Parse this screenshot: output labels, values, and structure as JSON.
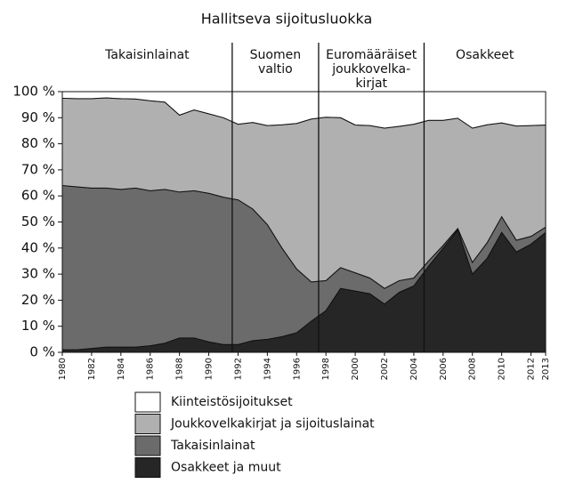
{
  "chart_data": {
    "type": "stacked-area",
    "title": "Hallitseva sijoitusluokka",
    "x": [
      1980,
      1981,
      1982,
      1983,
      1984,
      1985,
      1986,
      1987,
      1988,
      1989,
      1990,
      1991,
      1992,
      1993,
      1994,
      1995,
      1996,
      1997,
      1998,
      1999,
      2000,
      2001,
      2002,
      2003,
      2004,
      2005,
      2006,
      2007,
      2008,
      2009,
      2010,
      2011,
      2012,
      2013
    ],
    "series": [
      {
        "name": "Osakkeet ja muut",
        "color": "#262626",
        "values": [
          1,
          1,
          1.5,
          2,
          2,
          2,
          2.5,
          3.5,
          5.5,
          5.5,
          4,
          3,
          3,
          4.5,
          5,
          6,
          7.5,
          12,
          16,
          24.5,
          23.5,
          22.5,
          18.5,
          23,
          25.5,
          33,
          40,
          47,
          30,
          36,
          46,
          38.5,
          41.5,
          46
        ]
      },
      {
        "name": "Takaisinlainat",
        "color": "#6b6b6b",
        "values": [
          63,
          62.5,
          61.5,
          61,
          60.5,
          61,
          59.5,
          59,
          56,
          56.5,
          57,
          56.5,
          55.5,
          50.5,
          44,
          34,
          24.5,
          15,
          11.5,
          8,
          7,
          6,
          6,
          4.5,
          3,
          2,
          1,
          0.5,
          4.5,
          6,
          6,
          4.5,
          3,
          2
        ]
      },
      {
        "name": "Joukkovelkakirjat ja sijoituslainat",
        "color": "#b0b0b0",
        "values": [
          33.5,
          33.8,
          34.3,
          34.6,
          34.8,
          34.2,
          34.5,
          33.5,
          29.5,
          31,
          30.5,
          30.5,
          29,
          33.2,
          38,
          47.3,
          55.8,
          62.5,
          62.7,
          57.5,
          56.7,
          58.5,
          61.5,
          59.2,
          59,
          54,
          48,
          42.3,
          51.5,
          45.3,
          36,
          43.8,
          42.5,
          39.2
        ]
      },
      {
        "name": "Kiinteistösijoitukset",
        "color": "#ffffff",
        "values": [
          2.5,
          2.7,
          2.7,
          2.4,
          2.7,
          2.8,
          3.5,
          4,
          9,
          7,
          8.5,
          10,
          12.5,
          11.8,
          13,
          12.7,
          12.2,
          10.5,
          9.8,
          10,
          12.8,
          13,
          14,
          13.3,
          12.5,
          11,
          11,
          10.2,
          14,
          12.7,
          12,
          13.2,
          13,
          12.8
        ]
      }
    ],
    "periods": [
      {
        "lines": [
          "Takaisinlainat"
        ],
        "end": 1991.6
      },
      {
        "lines": [
          "Suomen",
          "valtio"
        ],
        "end": 1997.5
      },
      {
        "lines": [
          "Euromääräiset",
          "joukkovelka-",
          "kirjat"
        ],
        "end": 2004.7
      },
      {
        "lines": [
          "Osakkeet"
        ]
      }
    ],
    "xlim": [
      1980,
      2013
    ],
    "xticks": [
      1980,
      1982,
      1984,
      1986,
      1988,
      1990,
      1992,
      1994,
      1996,
      1998,
      2000,
      2002,
      2004,
      2006,
      2008,
      2010,
      2012,
      2013
    ],
    "ylim": [
      0,
      100
    ],
    "yticks": [
      {
        "value": 0,
        "label": "0 %"
      },
      {
        "value": 10,
        "label": "10 %"
      },
      {
        "value": 20,
        "label": "20 %"
      },
      {
        "value": 30,
        "label": "30 %"
      },
      {
        "value": 40,
        "label": "40 %"
      },
      {
        "value": 50,
        "label": "50 %"
      },
      {
        "value": 60,
        "label": "60 %"
      },
      {
        "value": 70,
        "label": "70 %"
      },
      {
        "value": 80,
        "label": "80 %"
      },
      {
        "value": 90,
        "label": "90 %"
      },
      {
        "value": 100,
        "label": "100 %"
      }
    ]
  }
}
